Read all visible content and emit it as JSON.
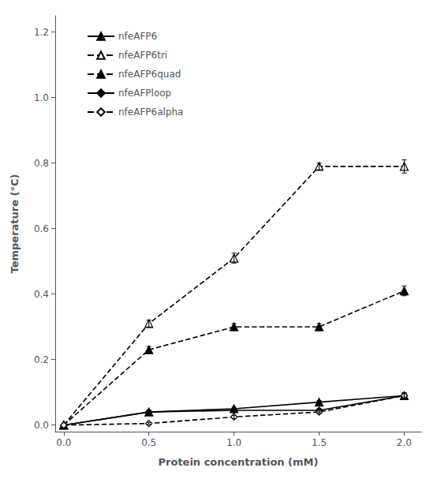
{
  "chart_data": {
    "type": "line",
    "xlabel": "Protein concentration (mM)",
    "ylabel": "Temperature (°C)",
    "xlim": [
      -0.05,
      2.1
    ],
    "ylim": [
      -0.02,
      1.25
    ],
    "xticks": [
      {
        "value": 0.0,
        "label": "0.0"
      },
      0.5,
      {
        "value": 1.0,
        "label": "1.0"
      },
      1.5,
      {
        "value": 2.0,
        "label": "2.0"
      }
    ],
    "yticks": [
      {
        "value": 0.0,
        "label": "0.0"
      },
      0.2,
      0.4,
      0.6,
      0.8,
      {
        "value": 1.0,
        "label": "1.0"
      },
      1.2
    ],
    "grid": false,
    "legend": "upper left",
    "series": [
      {
        "name": "nfeAFP6",
        "x": [
          0.0,
          0.5,
          1.0,
          1.5,
          2.0
        ],
        "values": [
          0.0,
          0.04,
          0.05,
          0.07,
          0.09
        ],
        "yerr": [
          0.0,
          0.005,
          0.005,
          0.005,
          0.008
        ],
        "color": "#000000",
        "marker": "triangle",
        "line_style": "solid"
      },
      {
        "name": "nfeAFP6tri",
        "x": [
          0.0,
          0.5,
          1.0,
          1.5,
          2.0
        ],
        "values": [
          0.0,
          0.31,
          0.51,
          0.79,
          0.79
        ],
        "yerr": [
          0.0,
          0.01,
          0.015,
          0.01,
          0.02
        ],
        "color": "#000000",
        "marker": "triangle-open",
        "line_style": "dashed"
      },
      {
        "name": "nfeAFP6quad",
        "x": [
          0.0,
          0.5,
          1.0,
          1.5,
          2.0
        ],
        "values": [
          0.0,
          0.23,
          0.3,
          0.3,
          0.41
        ],
        "yerr": [
          0.0,
          0.01,
          0.01,
          0.01,
          0.015
        ],
        "color": "#000000",
        "marker": "triangle",
        "line_style": "dashed"
      },
      {
        "name": "nfeAFPloop",
        "x": [
          0.0,
          0.5,
          1.0,
          1.5,
          2.0
        ],
        "values": [
          0.0,
          0.04,
          0.045,
          0.045,
          0.09
        ],
        "yerr": [
          0.0,
          0.005,
          0.005,
          0.005,
          0.008
        ],
        "color": "#000000",
        "marker": "diamond",
        "line_style": "solid"
      },
      {
        "name": "nfeAFP6alpha",
        "x": [
          0.0,
          0.5,
          1.0,
          1.5,
          2.0
        ],
        "values": [
          0.0,
          0.005,
          0.025,
          0.04,
          0.09
        ],
        "yerr": [
          0.0,
          0.003,
          0.005,
          0.005,
          0.008
        ],
        "color": "#000000",
        "marker": "diamond-open",
        "line_style": "dashed"
      }
    ]
  }
}
